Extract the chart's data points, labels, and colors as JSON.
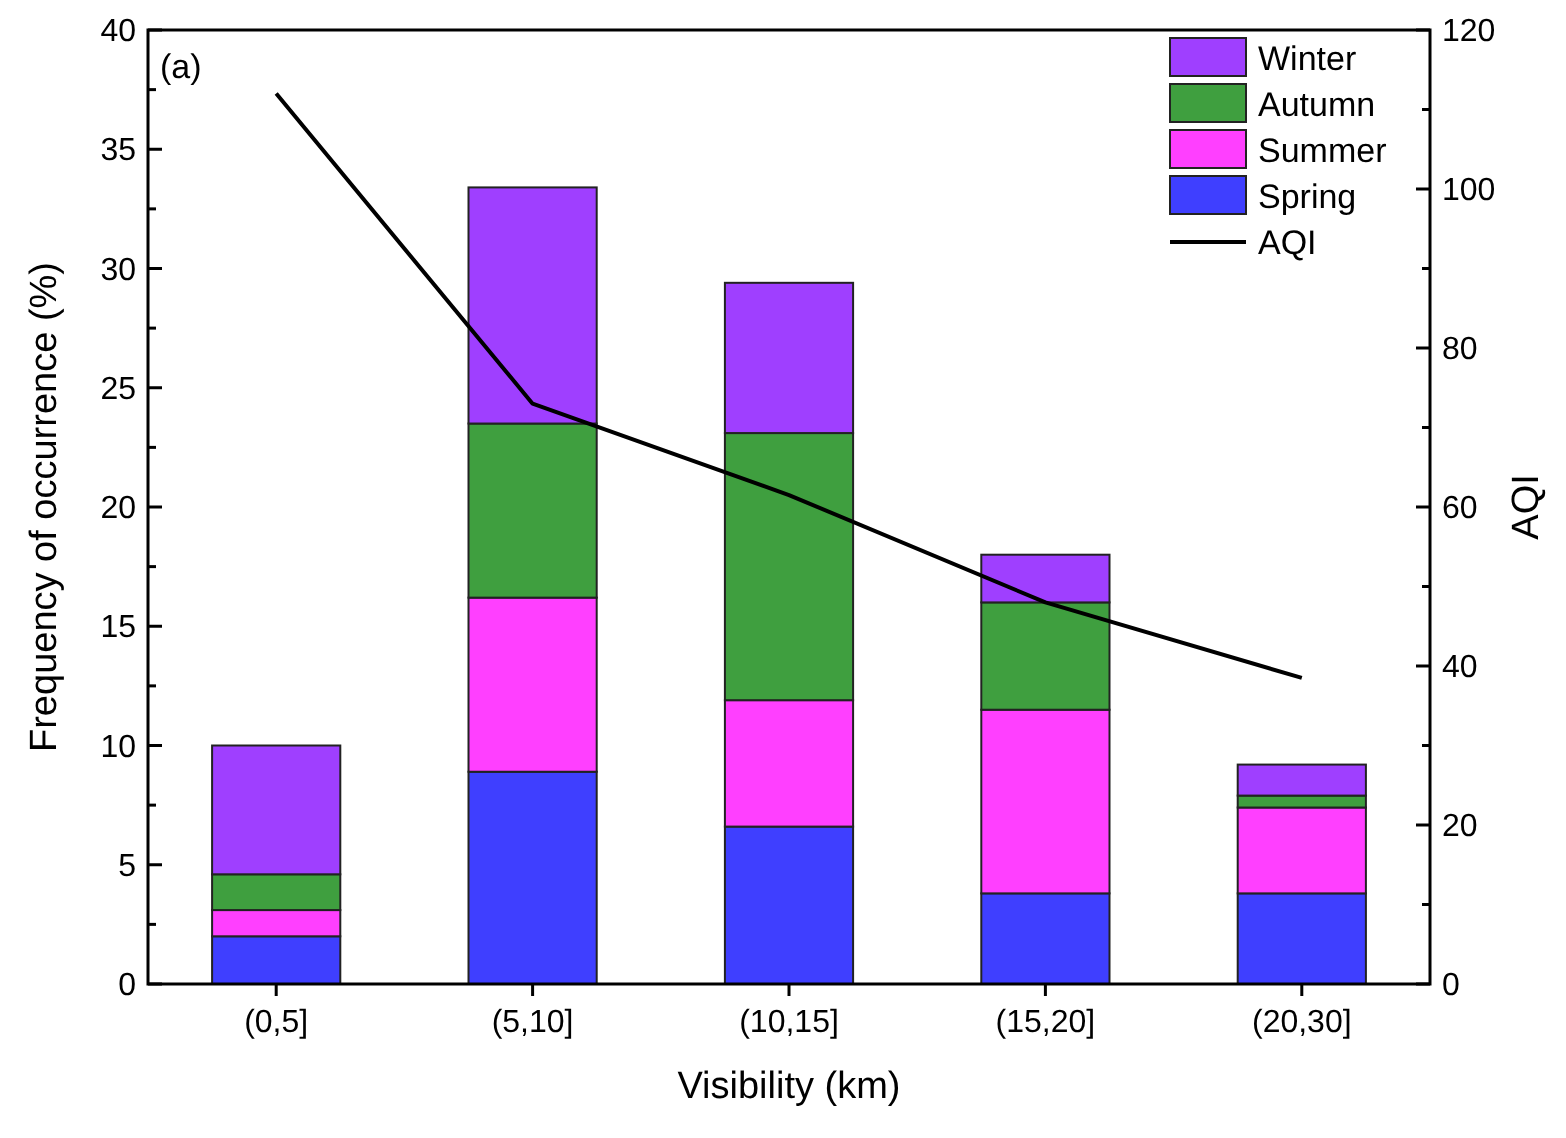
{
  "chart_data": {
    "type": "bar",
    "stacked": true,
    "xlabel": "Visibility (km)",
    "ylabel": "Frequency of occurrence (%)",
    "y2label": "AQI",
    "annotations": [
      "(a)"
    ],
    "categories": [
      "(0,5]",
      "(5,10]",
      "(10,15]",
      "(15,20]",
      "(20,30]"
    ],
    "series": [
      {
        "name": "Spring",
        "color": "#3f3fff",
        "values": [
          2.0,
          8.9,
          6.6,
          3.8,
          3.8
        ]
      },
      {
        "name": "Summer",
        "color": "#ff3fff",
        "values": [
          1.1,
          7.3,
          5.3,
          7.7,
          3.6
        ]
      },
      {
        "name": "Autumn",
        "color": "#3f9f3f",
        "values": [
          1.5,
          7.3,
          11.2,
          4.5,
          0.5
        ]
      },
      {
        "name": "Winter",
        "color": "#9f3fff",
        "values": [
          5.4,
          9.9,
          6.3,
          2.0,
          1.3
        ]
      },
      {
        "name": "AQI",
        "type": "line",
        "axis": "y2",
        "color": "#000000",
        "values": [
          112,
          73,
          61.5,
          48,
          38.5
        ]
      }
    ],
    "ylim": [
      0,
      40
    ],
    "yticks": [
      0,
      {
        "value": 2.5,
        "label": null
      },
      5,
      {
        "value": 7.5,
        "label": null
      },
      10,
      {
        "value": 12.5,
        "label": null
      },
      15,
      {
        "value": 17.5,
        "label": null
      },
      20,
      {
        "value": 22.5,
        "label": null
      },
      25,
      {
        "value": 27.5,
        "label": null
      },
      30,
      {
        "value": 32.5,
        "label": null
      },
      35,
      {
        "value": 37.5,
        "label": null
      },
      40
    ],
    "y2lim": [
      0,
      120
    ],
    "y2ticks": [
      0,
      {
        "value": 10,
        "label": null
      },
      20,
      {
        "value": 30,
        "label": null
      },
      40,
      {
        "value": 50,
        "label": null
      },
      60,
      {
        "value": 70,
        "label": null
      },
      80,
      {
        "value": 90,
        "label": null
      },
      100,
      {
        "value": 110,
        "label": null
      },
      120
    ],
    "legend": "top right",
    "grid": false
  }
}
